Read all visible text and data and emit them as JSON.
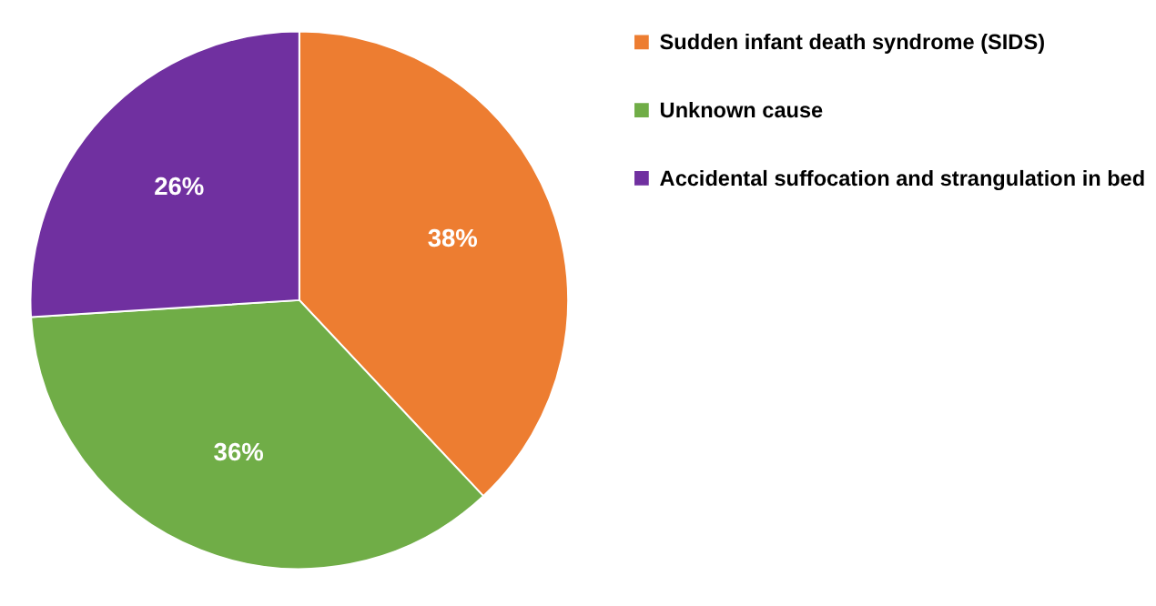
{
  "chart_data": {
    "type": "pie",
    "categories": [
      "Sudden infant death syndrome (SIDS)",
      "Unknown cause",
      "Accidental suffocation and strangulation in bed"
    ],
    "values": [
      38,
      36,
      26
    ],
    "colors": [
      "#ed7d31",
      "#70ad47",
      "#7030a0"
    ],
    "value_labels": [
      "38%",
      "36%",
      "26%"
    ],
    "legend": "right"
  }
}
